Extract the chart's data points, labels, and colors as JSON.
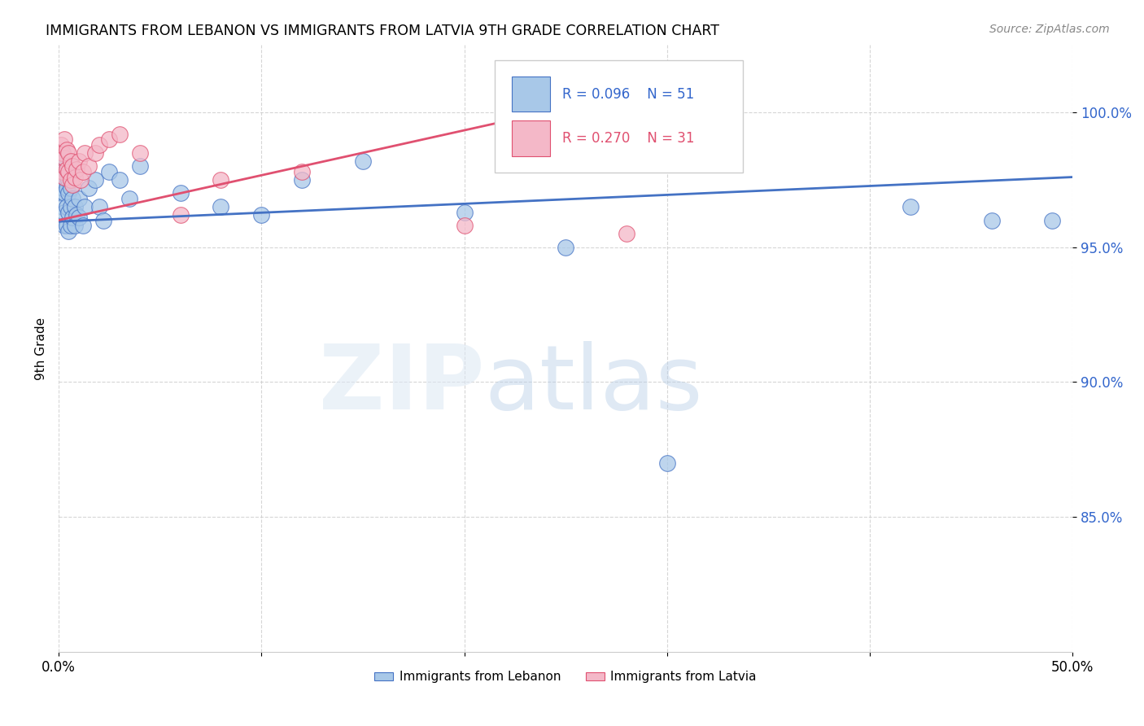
{
  "title": "IMMIGRANTS FROM LEBANON VS IMMIGRANTS FROM LATVIA 9TH GRADE CORRELATION CHART",
  "source": "Source: ZipAtlas.com",
  "ylabel": "9th Grade",
  "xlim": [
    0.0,
    0.5
  ],
  "ylim": [
    0.8,
    1.025
  ],
  "y_ticks": [
    0.85,
    0.9,
    0.95,
    1.0
  ],
  "y_tick_labels": [
    "85.0%",
    "90.0%",
    "95.0%",
    "100.0%"
  ],
  "x_ticks": [
    0.0,
    0.1,
    0.2,
    0.3,
    0.4,
    0.5
  ],
  "x_tick_labels": [
    "0.0%",
    "",
    "",
    "",
    "",
    "50.0%"
  ],
  "color_lebanon": "#a8c8e8",
  "color_latvia": "#f4b8c8",
  "trendline_lebanon_color": "#4472c4",
  "trendline_latvia_color": "#e05070",
  "leb_trend_x": [
    0.0,
    0.5
  ],
  "leb_trend_y": [
    0.9595,
    0.976
  ],
  "lat_trend_x": [
    0.0,
    0.3
  ],
  "lat_trend_y": [
    0.96,
    1.01
  ],
  "lebanon_x": [
    0.001,
    0.001,
    0.001,
    0.002,
    0.002,
    0.002,
    0.002,
    0.003,
    0.003,
    0.003,
    0.003,
    0.003,
    0.004,
    0.004,
    0.004,
    0.004,
    0.005,
    0.005,
    0.005,
    0.005,
    0.006,
    0.006,
    0.006,
    0.007,
    0.007,
    0.008,
    0.008,
    0.009,
    0.01,
    0.01,
    0.012,
    0.013,
    0.015,
    0.018,
    0.02,
    0.022,
    0.025,
    0.03,
    0.035,
    0.04,
    0.06,
    0.08,
    0.1,
    0.12,
    0.15,
    0.2,
    0.25,
    0.3,
    0.42,
    0.46,
    0.49
  ],
  "lebanon_y": [
    0.98,
    0.975,
    0.97,
    0.985,
    0.978,
    0.972,
    0.965,
    0.982,
    0.976,
    0.97,
    0.963,
    0.958,
    0.978,
    0.972,
    0.965,
    0.958,
    0.975,
    0.97,
    0.963,
    0.956,
    0.972,
    0.965,
    0.958,
    0.968,
    0.961,
    0.965,
    0.958,
    0.962,
    0.968,
    0.961,
    0.958,
    0.965,
    0.972,
    0.975,
    0.965,
    0.96,
    0.978,
    0.975,
    0.968,
    0.98,
    0.97,
    0.965,
    0.962,
    0.975,
    0.982,
    0.963,
    0.95,
    0.87,
    0.965,
    0.96,
    0.96
  ],
  "latvia_x": [
    0.001,
    0.002,
    0.002,
    0.003,
    0.003,
    0.003,
    0.004,
    0.004,
    0.005,
    0.005,
    0.006,
    0.006,
    0.007,
    0.007,
    0.008,
    0.009,
    0.01,
    0.011,
    0.012,
    0.013,
    0.015,
    0.018,
    0.02,
    0.025,
    0.03,
    0.04,
    0.06,
    0.08,
    0.12,
    0.2,
    0.28
  ],
  "latvia_y": [
    0.988,
    0.985,
    0.978,
    0.99,
    0.983,
    0.976,
    0.986,
    0.979,
    0.985,
    0.978,
    0.982,
    0.975,
    0.98,
    0.973,
    0.976,
    0.979,
    0.982,
    0.975,
    0.978,
    0.985,
    0.98,
    0.985,
    0.988,
    0.99,
    0.992,
    0.985,
    0.962,
    0.975,
    0.978,
    0.958,
    0.955
  ]
}
